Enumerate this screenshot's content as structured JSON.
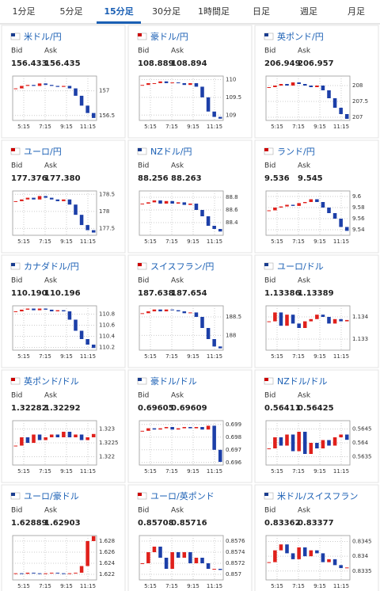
{
  "tabs": [
    "1分足",
    "5分足",
    "15分足",
    "30分足",
    "1時間足",
    "日足",
    "週足",
    "月足"
  ],
  "active_tab": 2,
  "labels": {
    "bid": "Bid",
    "ask": "Ask"
  },
  "time_labels": [
    "5:15",
    "7:15",
    "9:15",
    "11:15"
  ],
  "colors": {
    "up": "#e0201b",
    "down": "#1c3fa8"
  },
  "panels": [
    {
      "title": "米ドル/円",
      "bid": "156.433",
      "ask": "156.435",
      "ylim": [
        156.4,
        157.3
      ],
      "yticks": [
        156.5,
        157
      ],
      "closes": [
        157.05,
        157.1,
        157.12,
        157.1,
        157.15,
        157.12,
        157.1,
        157.08,
        157.1,
        157.05,
        156.9,
        156.7,
        156.55,
        156.45
      ]
    },
    {
      "title": "豪ドル/円",
      "bid": "108.889",
      "ask": "108.894",
      "ylim": [
        108.85,
        110.1
      ],
      "yticks": [
        109,
        109.5,
        110
      ],
      "closes": [
        109.85,
        109.9,
        109.9,
        109.95,
        109.9,
        109.92,
        109.9,
        109.85,
        109.9,
        109.8,
        109.5,
        109.1,
        108.95,
        108.9
      ]
    },
    {
      "title": "英ポンド/円",
      "bid": "206.949",
      "ask": "206.957",
      "ylim": [
        206.9,
        208.3
      ],
      "yticks": [
        207,
        207.5,
        208
      ],
      "closes": [
        207.95,
        208,
        208.05,
        208,
        208.1,
        208.05,
        208,
        207.95,
        208,
        207.85,
        207.6,
        207.3,
        207.1,
        206.95
      ]
    },
    {
      "title": "ユーロ/円",
      "bid": "177.376",
      "ask": "177.380",
      "ylim": [
        177.3,
        178.6
      ],
      "yticks": [
        177.5,
        178,
        178.5
      ],
      "closes": [
        178.3,
        178.35,
        178.4,
        178.35,
        178.45,
        178.4,
        178.35,
        178.3,
        178.35,
        178.2,
        177.9,
        177.6,
        177.45,
        177.38
      ]
    },
    {
      "title": "NZドル/円",
      "bid": "88.256",
      "ask": "88.263",
      "ylim": [
        88.2,
        88.9
      ],
      "yticks": [
        88.4,
        88.6,
        88.8
      ],
      "closes": [
        88.7,
        88.72,
        88.75,
        88.7,
        88.74,
        88.7,
        88.72,
        88.68,
        88.7,
        88.6,
        88.5,
        88.35,
        88.3,
        88.26
      ]
    },
    {
      "title": "ランド/円",
      "bid": "9.536",
      "ask": "9.545",
      "ylim": [
        9.53,
        9.61
      ],
      "yticks": [
        9.54,
        9.56,
        9.58,
        9.6
      ],
      "closes": [
        9.575,
        9.58,
        9.582,
        9.585,
        9.583,
        9.588,
        9.59,
        9.595,
        9.59,
        9.58,
        9.57,
        9.56,
        9.545,
        9.538
      ]
    },
    {
      "title": "カナダドル/円",
      "bid": "110.190",
      "ask": "110.196",
      "ylim": [
        110.15,
        110.95
      ],
      "yticks": [
        110.2,
        110.4,
        110.6,
        110.8
      ],
      "closes": [
        110.85,
        110.88,
        110.9,
        110.87,
        110.9,
        110.88,
        110.85,
        110.87,
        110.85,
        110.7,
        110.5,
        110.35,
        110.25,
        110.19
      ]
    },
    {
      "title": "スイスフラン/円",
      "bid": "187.638",
      "ask": "187.654",
      "ylim": [
        187.6,
        188.8
      ],
      "yticks": [
        188,
        188.5
      ],
      "closes": [
        188.6,
        188.65,
        188.7,
        188.65,
        188.7,
        188.68,
        188.65,
        188.6,
        188.62,
        188.5,
        188.2,
        187.9,
        187.7,
        187.65
      ]
    },
    {
      "title": "ユーロ/ドル",
      "bid": "1.13386",
      "ask": "1.13389",
      "ylim": [
        1.1325,
        1.1345
      ],
      "yticks": [
        1.133,
        1.134
      ],
      "closes": [
        1.1338,
        1.1342,
        1.1336,
        1.1341,
        1.1337,
        1.1335,
        1.1338,
        1.1339,
        1.1341,
        1.134,
        1.1337,
        1.1339,
        1.1338,
        1.13386
      ]
    },
    {
      "title": "英ポンド/ドル",
      "bid": "1.32282",
      "ask": "1.32292",
      "ylim": [
        1.3217,
        1.3233
      ],
      "yticks": [
        1.322,
        1.3225,
        1.323
      ],
      "closes": [
        1.3224,
        1.3227,
        1.3225,
        1.3228,
        1.3226,
        1.3227,
        1.3228,
        1.3227,
        1.3229,
        1.3227,
        1.3228,
        1.3226,
        1.3227,
        1.32282
      ]
    },
    {
      "title": "豪ドル/ドル",
      "bid": "0.69605",
      "ask": "0.69609",
      "ylim": [
        0.6958,
        0.6993
      ],
      "yticks": [
        0.696,
        0.697,
        0.698,
        0.699
      ],
      "closes": [
        0.6985,
        0.6987,
        0.6986,
        0.6987,
        0.6988,
        0.6986,
        0.6987,
        0.6988,
        0.6987,
        0.6988,
        0.6986,
        0.6989,
        0.697,
        0.69605
      ]
    },
    {
      "title": "NZドル/ドル",
      "bid": "0.56411",
      "ask": "0.56425",
      "ylim": [
        0.5632,
        0.5648
      ],
      "yticks": [
        0.5635,
        0.564,
        0.5645
      ],
      "closes": [
        0.5638,
        0.5642,
        0.5639,
        0.5643,
        0.5637,
        0.5644,
        0.5636,
        0.564,
        0.5638,
        0.5641,
        0.5639,
        0.5642,
        0.5643,
        0.56411
      ]
    },
    {
      "title": "ユーロ/豪ドル",
      "bid": "1.62889",
      "ask": "1.62903",
      "ylim": [
        1.621,
        1.629
      ],
      "yticks": [
        1.622,
        1.624,
        1.626,
        1.628
      ],
      "closes": [
        1.6222,
        1.6221,
        1.6223,
        1.6222,
        1.6221,
        1.6222,
        1.6223,
        1.6222,
        1.6221,
        1.6222,
        1.6223,
        1.6235,
        1.628,
        1.62889
      ]
    },
    {
      "title": "ユーロ/英ポンド",
      "bid": "0.85708",
      "ask": "0.85716",
      "ylim": [
        0.8569,
        0.8577
      ],
      "yticks": [
        0.857,
        0.8572,
        0.8574,
        0.8576
      ],
      "closes": [
        0.8572,
        0.8574,
        0.8575,
        0.8573,
        0.8571,
        0.8574,
        0.8573,
        0.8574,
        0.8572,
        0.8573,
        0.8572,
        0.8571,
        0.8571,
        0.85708
      ]
    },
    {
      "title": "米ドル/スイスフラン",
      "bid": "0.83362",
      "ask": "0.83377",
      "ylim": [
        0.8332,
        0.8347
      ],
      "yticks": [
        0.8335,
        0.834,
        0.8345
      ],
      "closes": [
        0.8338,
        0.8342,
        0.8344,
        0.8341,
        0.8339,
        0.8343,
        0.834,
        0.8342,
        0.8341,
        0.8338,
        0.8339,
        0.8337,
        0.8336,
        0.83362
      ]
    }
  ]
}
